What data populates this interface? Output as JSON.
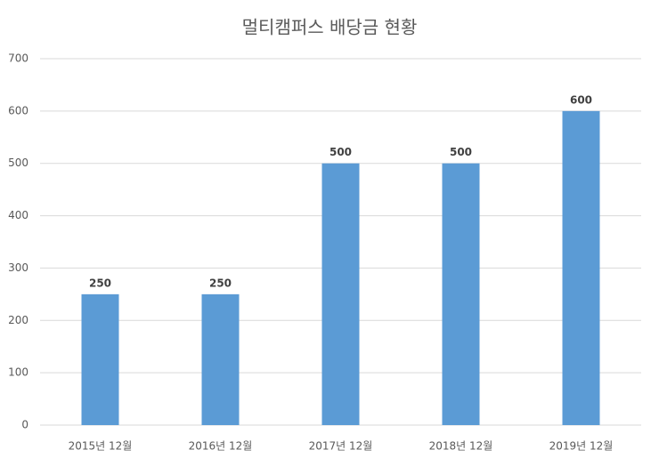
{
  "chart_data": {
    "type": "bar",
    "title": "멀티캠퍼스 배당금 현황",
    "categories": [
      "2015년 12월",
      "2016년 12월",
      "2017년 12월",
      "2018년 12월",
      "2019년 12월"
    ],
    "values": [
      250,
      250,
      500,
      500,
      600
    ],
    "color": "#5b9bd5",
    "ylim": [
      0,
      700
    ],
    "yticks": [
      0,
      100,
      200,
      300,
      400,
      500,
      600,
      700
    ],
    "grid": true
  }
}
